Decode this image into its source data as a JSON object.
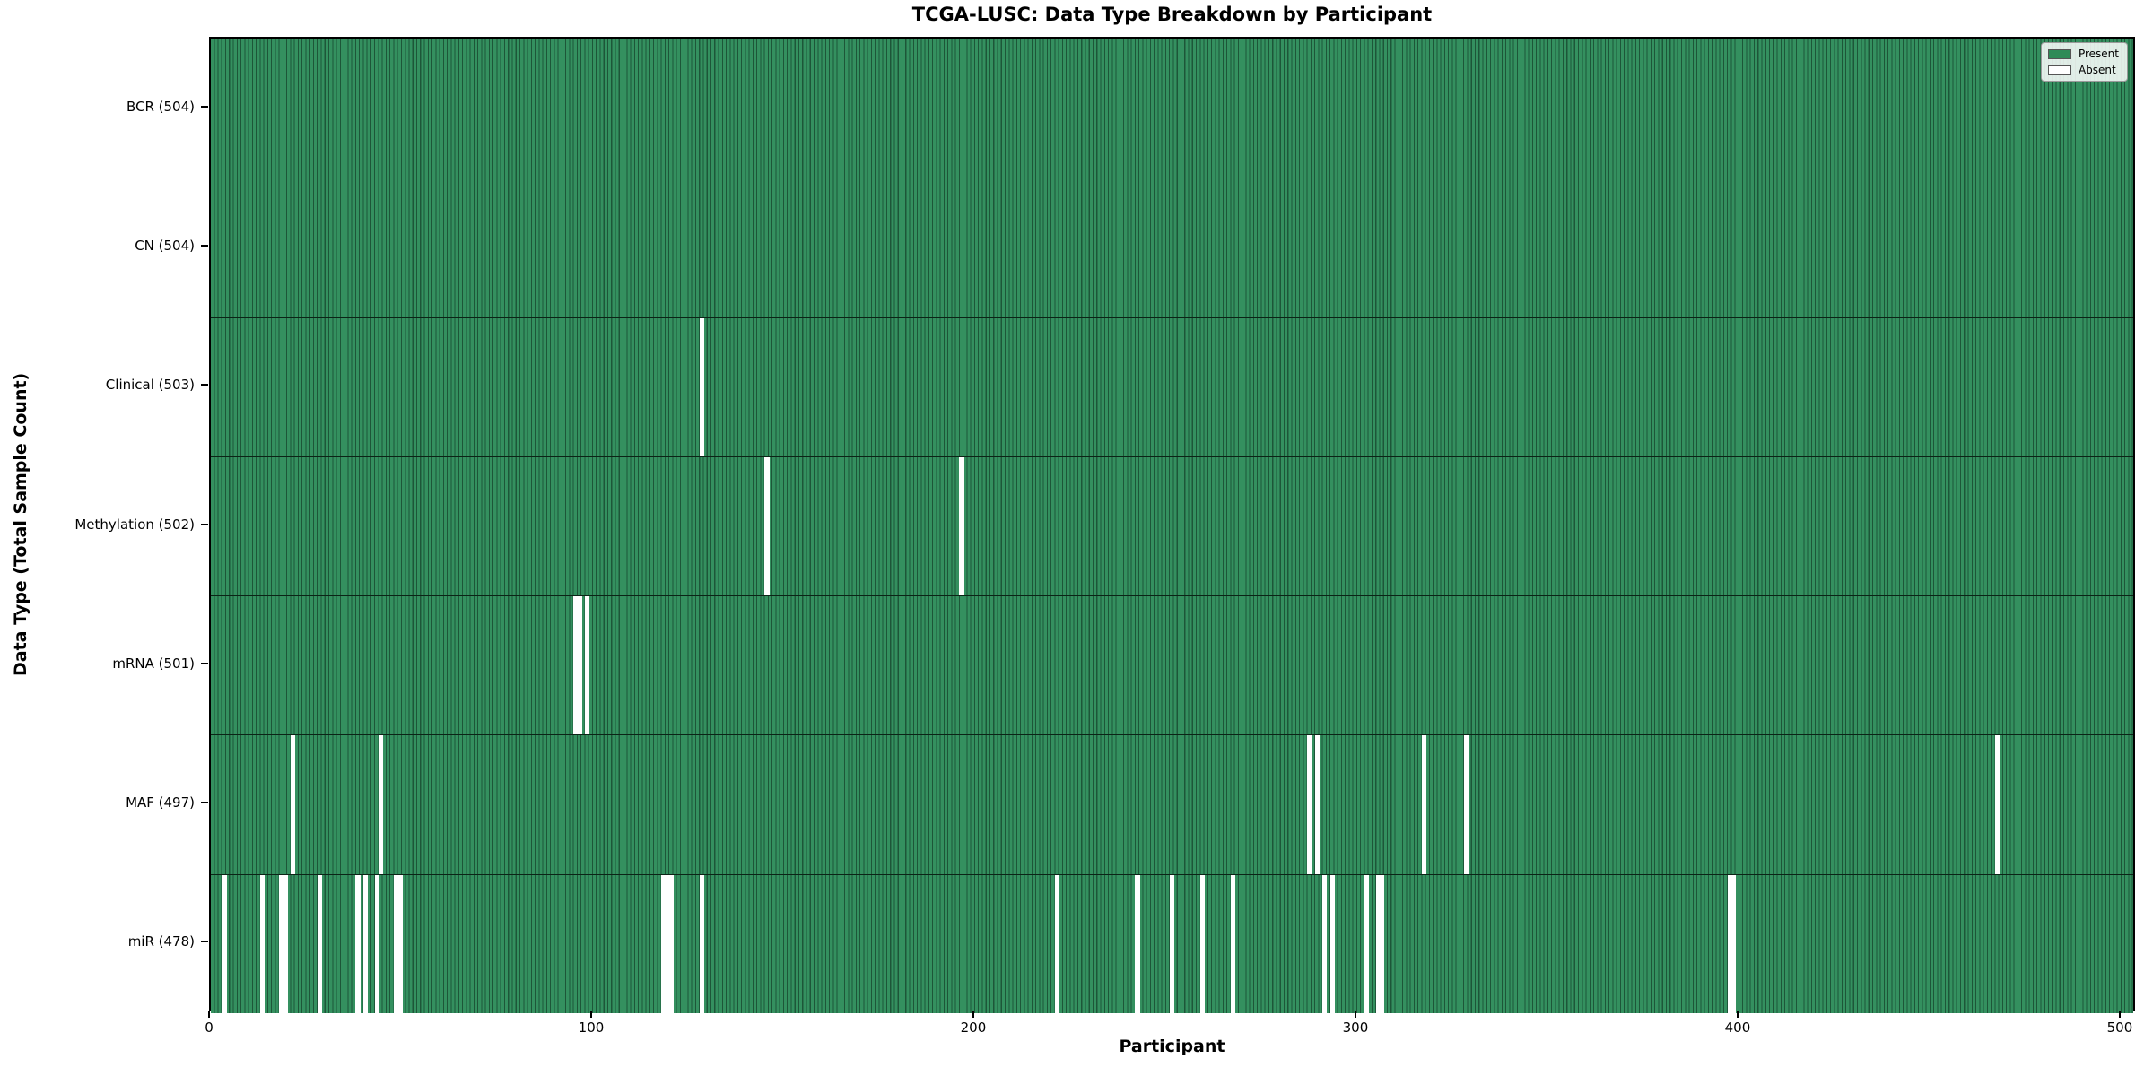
{
  "chart_data": {
    "type": "heatmap",
    "title": "TCGA-LUSC: Data Type Breakdown by Participant",
    "xlabel": "Participant",
    "ylabel": "Data Type (Total Sample Count)",
    "x_ticks": [
      0,
      100,
      200,
      300,
      400,
      500
    ],
    "n_participants": 504,
    "legend_position": "upper right",
    "legend": [
      {
        "label": "Present",
        "color": "#2f8b57"
      },
      {
        "label": "Absent",
        "color": "#ffffff"
      }
    ],
    "colors": {
      "present_fill": "#2f8b57",
      "bar_edge": "#1d5638",
      "absent_fill": "#ffffff"
    },
    "rows": [
      {
        "name": "bcr",
        "label": "BCR (504)",
        "count": 504,
        "absent_participants": []
      },
      {
        "name": "cn",
        "label": "CN (504)",
        "count": 504,
        "absent_participants": []
      },
      {
        "name": "clinical",
        "label": "Clinical (503)",
        "count": 503,
        "absent_participants": [
          128
        ]
      },
      {
        "name": "methylation",
        "label": "Methylation (502)",
        "count": 502,
        "absent_participants": [
          145,
          196
        ]
      },
      {
        "name": "mrna",
        "label": "mRNA (501)",
        "count": 501,
        "absent_participants": [
          95,
          96,
          98
        ]
      },
      {
        "name": "maf",
        "label": "MAF (497)",
        "count": 497,
        "absent_participants": [
          21,
          44,
          287,
          289,
          317,
          328,
          467
        ]
      },
      {
        "name": "mir",
        "label": "miR (478)",
        "count": 478,
        "absent_participants": [
          3,
          13,
          18,
          19,
          28,
          38,
          40,
          43,
          48,
          49,
          118,
          119,
          120,
          128,
          221,
          242,
          251,
          259,
          267,
          291,
          293,
          302,
          305,
          306,
          397,
          398
        ]
      }
    ]
  }
}
